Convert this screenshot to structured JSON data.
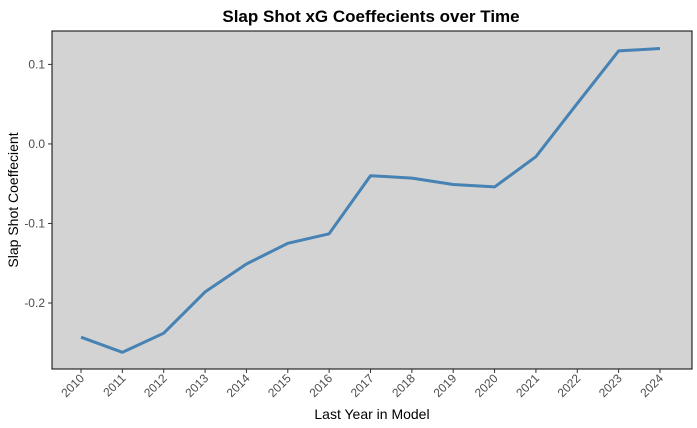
{
  "chart_data": {
    "type": "line",
    "title": "Slap Shot xG Coeffecients over Time",
    "xlabel": "Last Year in Model",
    "ylabel": "Slap Shot Coeffecient",
    "x": [
      "2010",
      "2011",
      "2012",
      "2013",
      "2014",
      "2015",
      "2016",
      "2017",
      "2018",
      "2019",
      "2020",
      "2021",
      "2022",
      "2023",
      "2024"
    ],
    "series": [
      {
        "name": "Slap Shot Coeffecient",
        "values": [
          -0.243,
          -0.262,
          -0.238,
          -0.186,
          -0.151,
          -0.125,
          -0.113,
          -0.04,
          -0.043,
          -0.051,
          -0.054,
          -0.016,
          0.051,
          0.117,
          0.12
        ]
      }
    ],
    "y_ticks": [
      0.1,
      0.0,
      -0.1,
      -0.2
    ],
    "y_tick_labels": [
      "0.1",
      "0.0",
      "-0.1",
      "-0.2"
    ],
    "ylim": [
      -0.283,
      0.142
    ],
    "grid": false,
    "colors": {
      "line": "#4682B4",
      "panel_background": "#D3D3D3",
      "panel_border": "#000000"
    }
  }
}
